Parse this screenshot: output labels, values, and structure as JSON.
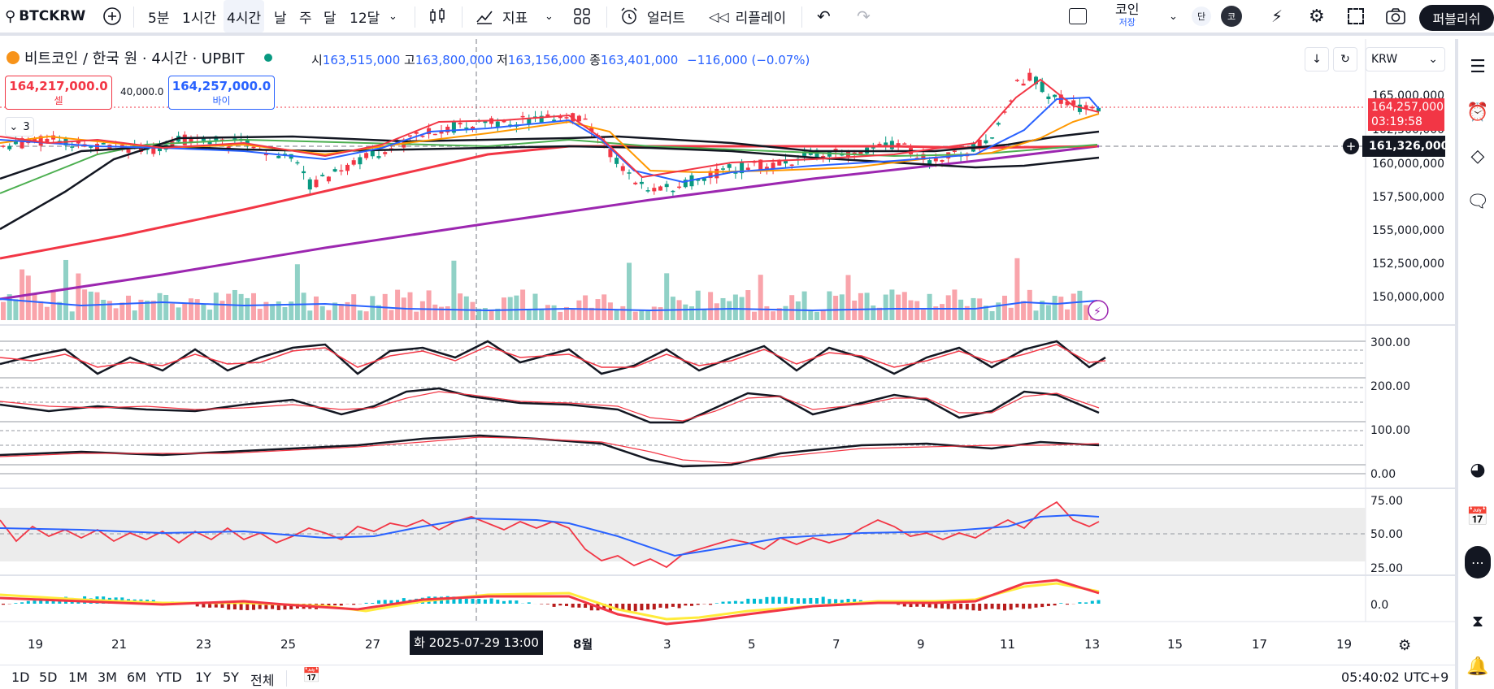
{
  "header": {
    "symbol": "BTCKRW",
    "intervals": [
      "5분",
      "1시간",
      "4시간",
      "날",
      "주",
      "달",
      "12달"
    ],
    "active_interval": "4시간",
    "indicators_label": "지표",
    "alert_label": "얼러트",
    "replay_label": "리플레이",
    "layout_name": "코인",
    "layout_sub": "저장",
    "avatar_1": "단",
    "avatar_2": "코",
    "publish_label": "퍼블리쉬"
  },
  "legend": {
    "title": "비트코인 / 한국 원 · 4시간 · UPBIT",
    "open_label": "시",
    "open": "163,515,000",
    "high_label": "고",
    "high": "163,800,000",
    "low_label": "저",
    "low": "163,156,000",
    "close_label": "종",
    "close": "163,401,000",
    "change": "−116,000 (−0.07%)",
    "collapse_count": "3"
  },
  "trade": {
    "sell_price": "164,217,000.0",
    "sell_label": "셀",
    "spread": "40,000.0",
    "buy_price": "164,257,000.0",
    "buy_label": "바이"
  },
  "currency": "KRW",
  "price_axis": [
    "165,000,000",
    "162,500,000",
    "160,000,000",
    "157,500,000",
    "155,000,000",
    "152,500,000",
    "150,000,000"
  ],
  "current_price": {
    "price": "164,257,000",
    "countdown": "03:19:58"
  },
  "crosshair_price": "161,326,000",
  "osc_axis": [
    "300.00",
    "200.00",
    "100.00",
    "0.00"
  ],
  "rsi_axis": [
    "75.00",
    "50.00",
    "25.00"
  ],
  "macd_axis": "0.0",
  "time_axis": [
    "19",
    "21",
    "23",
    "25",
    "27",
    "8월",
    "3",
    "5",
    "7",
    "9",
    "11",
    "13",
    "15",
    "17",
    "19"
  ],
  "crosshair_date": "화 2025-07-29   13:00",
  "bottom": {
    "ranges": [
      "1D",
      "5D",
      "1M",
      "3M",
      "6M",
      "YTD",
      "1Y",
      "5Y",
      "전체"
    ],
    "clock": "05:40:02 UTC+9"
  },
  "colors": {
    "up": "#089981",
    "down": "#f23645",
    "accent": "#2962ff",
    "dark": "#131722"
  }
}
